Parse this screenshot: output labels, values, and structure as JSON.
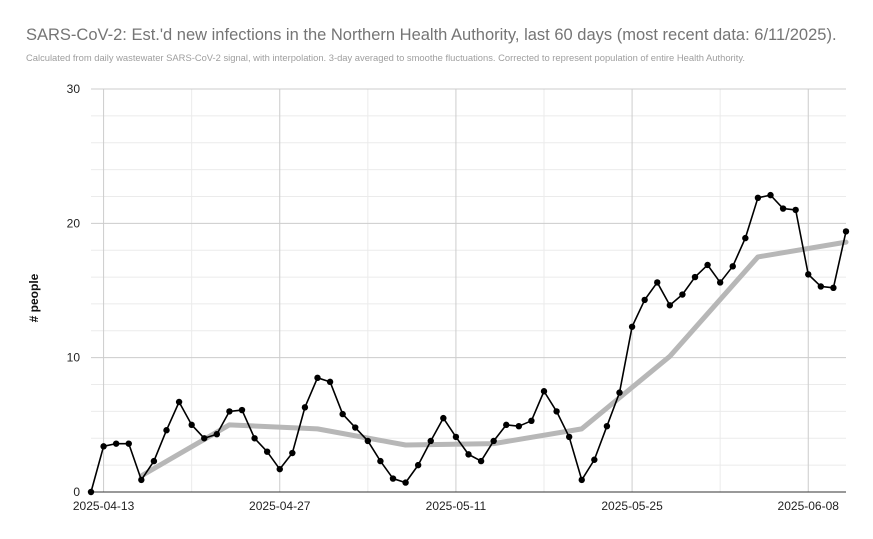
{
  "title": "SARS-CoV-2: Est.'d new infections in the Northern Health Authority, last 60 days (most recent data: 6/11/2025).",
  "subtitle": "Calculated from daily wastewater SARS-CoV-2 signal, with interpolation. 3-day averaged to smoothe fluctuations. Corrected to represent population of entire Health Authority.",
  "colors": {
    "daily": "#000000",
    "trend": "#b7b7b7",
    "grid_major": "#cccccc",
    "grid_minor": "#ebebeb"
  },
  "chart_data": {
    "type": "line",
    "title": "SARS-CoV-2: Est.'d new infections in the Northern Health Authority, last 60 days (most recent data: 6/11/2025).",
    "subtitle": "Calculated from daily wastewater SARS-CoV-2 signal, with interpolation. 3-day averaged to smoothe fluctuations. Corrected to represent population of entire Health Authority.",
    "xlabel": "",
    "ylabel": "# people",
    "ylim": [
      0,
      30
    ],
    "yticks": [
      0,
      10,
      20,
      30
    ],
    "xlim": [
      "2025-04-12",
      "2025-06-11"
    ],
    "xticks": [
      "2025-04-13",
      "2025-04-27",
      "2025-05-11",
      "2025-05-25",
      "2025-06-08"
    ],
    "grid": true,
    "series": [
      {
        "points": [
          [
            "2025-04-12",
            0.0
          ],
          [
            "2025-04-13",
            3.4
          ],
          [
            "2025-04-14",
            3.6
          ],
          [
            "2025-04-15",
            3.6
          ],
          [
            "2025-04-16",
            0.9
          ],
          [
            "2025-04-17",
            2.3
          ],
          [
            "2025-04-18",
            4.6
          ],
          [
            "2025-04-19",
            6.7
          ],
          [
            "2025-04-20",
            5.0
          ],
          [
            "2025-04-21",
            4.0
          ],
          [
            "2025-04-22",
            4.3
          ],
          [
            "2025-04-23",
            6.0
          ],
          [
            "2025-04-24",
            6.1
          ],
          [
            "2025-04-25",
            4.0
          ],
          [
            "2025-04-26",
            3.0
          ],
          [
            "2025-04-27",
            1.7
          ],
          [
            "2025-04-28",
            2.9
          ],
          [
            "2025-04-29",
            6.3
          ],
          [
            "2025-04-30",
            8.5
          ],
          [
            "2025-05-01",
            8.2
          ],
          [
            "2025-05-02",
            5.8
          ],
          [
            "2025-05-03",
            4.8
          ],
          [
            "2025-05-04",
            3.8
          ],
          [
            "2025-05-05",
            2.3
          ],
          [
            "2025-05-06",
            1.0
          ],
          [
            "2025-05-07",
            0.7
          ],
          [
            "2025-05-08",
            2.0
          ],
          [
            "2025-05-09",
            3.8
          ],
          [
            "2025-05-10",
            5.5
          ],
          [
            "2025-05-11",
            4.1
          ],
          [
            "2025-05-12",
            2.8
          ],
          [
            "2025-05-13",
            2.3
          ],
          [
            "2025-05-14",
            3.8
          ],
          [
            "2025-05-15",
            5.0
          ],
          [
            "2025-05-16",
            4.9
          ],
          [
            "2025-05-17",
            5.3
          ],
          [
            "2025-05-18",
            7.5
          ],
          [
            "2025-05-19",
            6.0
          ],
          [
            "2025-05-20",
            4.1
          ],
          [
            "2025-05-21",
            0.9
          ],
          [
            "2025-05-22",
            2.4
          ],
          [
            "2025-05-23",
            4.9
          ],
          [
            "2025-05-24",
            7.4
          ],
          [
            "2025-05-25",
            12.3
          ],
          [
            "2025-05-26",
            14.3
          ],
          [
            "2025-05-27",
            15.6
          ],
          [
            "2025-05-28",
            13.9
          ],
          [
            "2025-05-29",
            14.7
          ],
          [
            "2025-05-30",
            16.0
          ],
          [
            "2025-05-31",
            16.9
          ],
          [
            "2025-06-01",
            15.6
          ],
          [
            "2025-06-02",
            16.8
          ],
          [
            "2025-06-03",
            18.9
          ],
          [
            "2025-06-04",
            21.9
          ],
          [
            "2025-06-05",
            22.1
          ],
          [
            "2025-06-06",
            21.1
          ],
          [
            "2025-06-07",
            21.0
          ],
          [
            "2025-06-08",
            16.2
          ],
          [
            "2025-06-09",
            15.3
          ],
          [
            "2025-06-10",
            15.2
          ],
          [
            "2025-06-11",
            19.4
          ]
        ],
        "style": "line-with-markers"
      },
      {
        "points": [
          [
            "2025-04-16",
            1.2
          ],
          [
            "2025-04-23",
            5.0
          ],
          [
            "2025-04-30",
            4.7
          ],
          [
            "2025-05-07",
            3.5
          ],
          [
            "2025-05-14",
            3.6
          ],
          [
            "2025-05-21",
            4.7
          ],
          [
            "2025-05-28",
            10.1
          ],
          [
            "2025-06-04",
            17.5
          ],
          [
            "2025-06-11",
            18.6
          ]
        ],
        "style": "thick-line"
      }
    ]
  }
}
